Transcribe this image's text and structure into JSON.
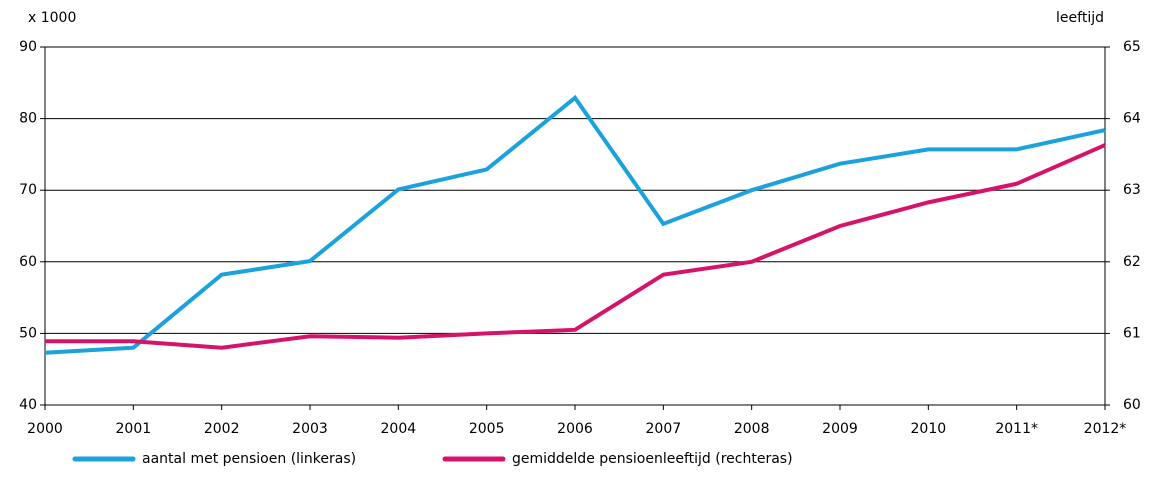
{
  "chart_data": {
    "type": "line",
    "ylabel": "x 1000",
    "y2label": "leeftijd",
    "categories": [
      "2000",
      "2001",
      "2002",
      "2003",
      "2004",
      "2005",
      "2006",
      "2007",
      "2008",
      "2009",
      "2010",
      "2011*",
      "2012*"
    ],
    "series": [
      {
        "name": "aantal met pensioen (linkeras)",
        "color": "#1ba1dc",
        "values": [
          47.3,
          48.0,
          58.2,
          60.1,
          70.1,
          72.9,
          82.9,
          65.3,
          70.0,
          73.7,
          75.7,
          75.7,
          78.4
        ]
      },
      {
        "name": "gemiddelde pensioenleeftijd (rechteras)",
        "color": "#d6136b",
        "axis": "y2",
        "values": [
          60.89,
          60.89,
          60.8,
          60.96,
          60.94,
          61.0,
          61.05,
          61.82,
          62.0,
          62.5,
          62.83,
          63.09,
          63.63
        ]
      }
    ],
    "ylim": [
      40,
      90
    ],
    "yticks": [
      40,
      50,
      60,
      70,
      80,
      90
    ],
    "y2lim": [
      60,
      65
    ],
    "y2ticks": [
      60,
      61,
      62,
      63,
      64,
      65
    ],
    "grid": true,
    "legend": "bottom"
  }
}
